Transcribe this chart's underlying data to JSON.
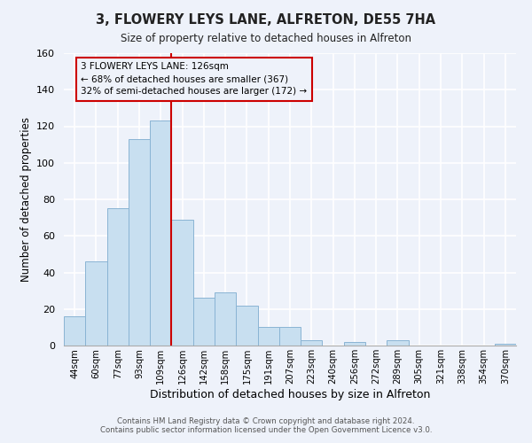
{
  "title": "3, FLOWERY LEYS LANE, ALFRETON, DE55 7HA",
  "subtitle": "Size of property relative to detached houses in Alfreton",
  "xlabel": "Distribution of detached houses by size in Alfreton",
  "ylabel": "Number of detached properties",
  "bar_labels": [
    "44sqm",
    "60sqm",
    "77sqm",
    "93sqm",
    "109sqm",
    "126sqm",
    "142sqm",
    "158sqm",
    "175sqm",
    "191sqm",
    "207sqm",
    "223sqm",
    "240sqm",
    "256sqm",
    "272sqm",
    "289sqm",
    "305sqm",
    "321sqm",
    "338sqm",
    "354sqm",
    "370sqm"
  ],
  "bar_heights": [
    16,
    46,
    75,
    113,
    123,
    69,
    26,
    29,
    22,
    10,
    10,
    3,
    0,
    2,
    0,
    3,
    0,
    0,
    0,
    0,
    1
  ],
  "bar_color": "#c8dff0",
  "bar_edge_color": "#8ab4d4",
  "vline_color": "#cc0000",
  "annotation_lines": [
    "3 FLOWERY LEYS LANE: 126sqm",
    "← 68% of detached houses are smaller (367)",
    "32% of semi-detached houses are larger (172) →"
  ],
  "annotation_box_edge": "#cc0000",
  "ylim": [
    0,
    160
  ],
  "yticks": [
    0,
    20,
    40,
    60,
    80,
    100,
    120,
    140,
    160
  ],
  "footer_line1": "Contains HM Land Registry data © Crown copyright and database right 2024.",
  "footer_line2": "Contains public sector information licensed under the Open Government Licence v3.0.",
  "bg_color": "#eef2fa",
  "grid_color": "#ffffff"
}
